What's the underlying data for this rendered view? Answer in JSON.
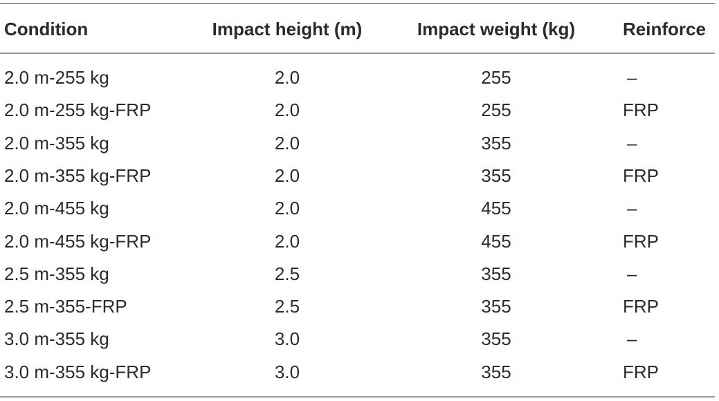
{
  "table": {
    "header": [
      "Condition",
      "Impact height (m)",
      "Impact weight (kg)",
      "Reinforce"
    ],
    "rows": [
      [
        "2.0 m-255 kg",
        "2.0",
        "255",
        "–"
      ],
      [
        "2.0 m-255 kg-FRP",
        "2.0",
        "255",
        "FRP"
      ],
      [
        "2.0 m-355 kg",
        "2.0",
        "355",
        "–"
      ],
      [
        "2.0 m-355 kg-FRP",
        "2.0",
        "355",
        "FRP"
      ],
      [
        "2.0 m-455 kg",
        "2.0",
        "455",
        "–"
      ],
      [
        "2.0 m-455 kg-FRP",
        "2.0",
        "455",
        "FRP"
      ],
      [
        "2.5 m-355 kg",
        "2.5",
        "355",
        "–"
      ],
      [
        "2.5 m-355-FRP",
        "2.5",
        "355",
        "FRP"
      ],
      [
        "3.0 m-355 kg",
        "3.0",
        "355",
        "–"
      ],
      [
        "3.0 m-355 kg-FRP",
        "3.0",
        "355",
        "FRP"
      ]
    ]
  }
}
